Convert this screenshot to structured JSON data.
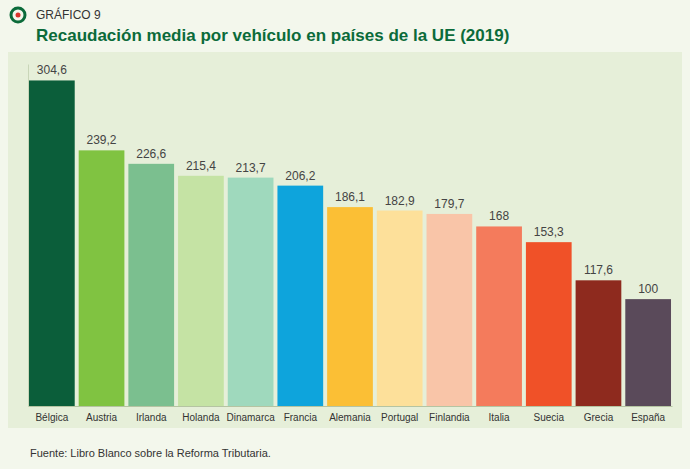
{
  "chart_data": {
    "type": "bar",
    "subtitle": "GRÁFICO 9",
    "title": "Recaudación media por vehículo en países de la UE (2019)",
    "categories": [
      "Bélgica",
      "Austria",
      "Irlanda",
      "Holanda",
      "Dinamarca",
      "Francia",
      "Alemania",
      "Portugal",
      "Finlandia",
      "Italia",
      "Suecia",
      "Grecia",
      "España"
    ],
    "values": [
      304.6,
      239.2,
      226.6,
      215.4,
      213.7,
      206.2,
      186.1,
      182.9,
      179.7,
      168,
      153.3,
      117.6,
      100
    ],
    "value_labels": [
      "304,6",
      "239,2",
      "226,6",
      "215,4",
      "213,7",
      "206,2",
      "186,1",
      "182,9",
      "179,7",
      "168",
      "153,3",
      "117,6",
      "100"
    ],
    "colors": [
      "#0b5e3a",
      "#80c341",
      "#7bbf8f",
      "#c5e3a4",
      "#9fd9bd",
      "#0ea4dc",
      "#fbbf35",
      "#fde09a",
      "#f9c5a8",
      "#f47b5c",
      "#f05128",
      "#8e2a1e",
      "#5a4a5a"
    ],
    "ylim": [
      0,
      320
    ],
    "tick_labels": "x",
    "data_labels": true,
    "grid": false,
    "annotations": [
      "Fuente: Libro Blanco sobre la Reforma Tributaria."
    ]
  }
}
